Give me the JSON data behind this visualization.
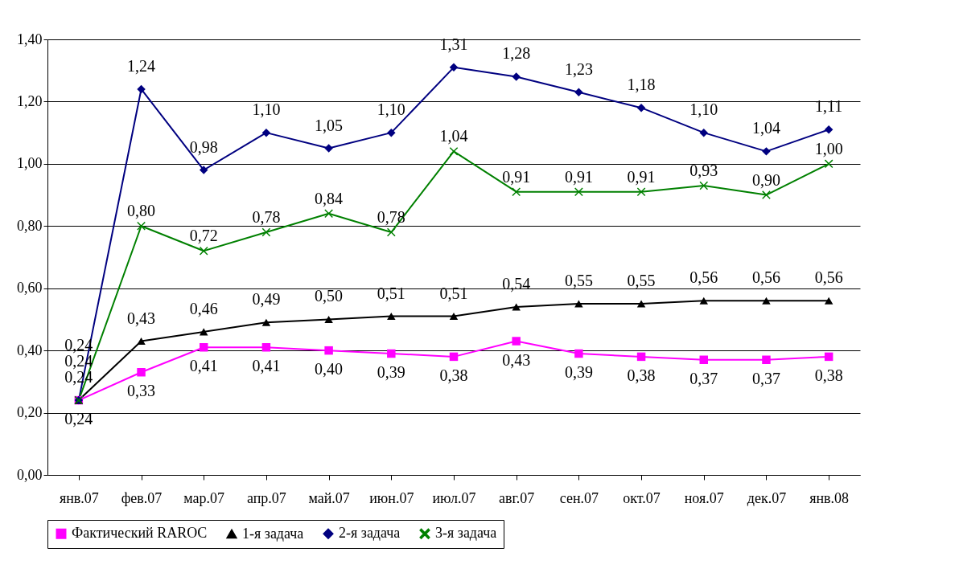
{
  "chart_data": {
    "type": "line",
    "categories": [
      "янв.07",
      "фев.07",
      "мар.07",
      "апр.07",
      "май.07",
      "июн.07",
      "июл.07",
      "авг.07",
      "сен.07",
      "окт.07",
      "ноя.07",
      "дек.07",
      "янв.08"
    ],
    "ylim": [
      0,
      1.4
    ],
    "yticks": [
      {
        "value": 0,
        "label": "0,00"
      },
      {
        "value": 0.2,
        "label": "0,20"
      },
      {
        "value": 0.4,
        "label": "0,40"
      },
      {
        "value": 0.6,
        "label": "0,60"
      },
      {
        "value": 0.8,
        "label": "0,80"
      },
      {
        "value": 1.0,
        "label": "1,00"
      },
      {
        "value": 1.2,
        "label": "1,20"
      },
      {
        "value": 1.4,
        "label": "1,40"
      }
    ],
    "grid": "y",
    "legend": "bottom",
    "series": [
      {
        "name": "Фактический RAROC",
        "color": "#ff00ff",
        "marker": "square",
        "values": [
          0.24,
          0.33,
          0.41,
          0.41,
          0.4,
          0.39,
          0.38,
          0.43,
          0.39,
          0.38,
          0.37,
          0.37,
          0.38
        ],
        "value_labels": [
          "0,24",
          "0,33",
          "0,41",
          "0,41",
          "0,40",
          "0,39",
          "0,38",
          "0,43",
          "0,39",
          "0,38",
          "0,37",
          "0,37",
          "0,38"
        ]
      },
      {
        "name": "1-я задача",
        "color": "#000000",
        "marker": "triangle",
        "values": [
          0.24,
          0.43,
          0.46,
          0.49,
          0.5,
          0.51,
          0.51,
          0.54,
          0.55,
          0.55,
          0.56,
          0.56,
          0.56
        ],
        "value_labels": [
          "0,24",
          "0,43",
          "0,46",
          "0,49",
          "0,50",
          "0,51",
          "0,51",
          "0,54",
          "0,55",
          "0,55",
          "0,56",
          "0,56",
          "0,56"
        ]
      },
      {
        "name": "2-я задача",
        "color": "#000080",
        "marker": "diamond",
        "values": [
          0.24,
          1.24,
          0.98,
          1.1,
          1.05,
          1.1,
          1.31,
          1.28,
          1.23,
          1.18,
          1.1,
          1.04,
          1.11
        ],
        "value_labels": [
          "0,24",
          "1,24",
          "0,98",
          "1,10",
          "1,05",
          "1,10",
          "1,31",
          "1,28",
          "1,23",
          "1,18",
          "1,10",
          "1,04",
          "1,11"
        ]
      },
      {
        "name": "3-я задача",
        "color": "#008000",
        "marker": "cross",
        "values": [
          0.24,
          0.8,
          0.72,
          0.78,
          0.84,
          0.78,
          1.04,
          0.91,
          0.91,
          0.91,
          0.93,
          0.9,
          1.0
        ],
        "value_labels": [
          "0,24",
          "0,80",
          "0,72",
          "0,78",
          "0,84",
          "0,78",
          "1,04",
          "0,91",
          "0,91",
          "0,91",
          "0,93",
          "0,90",
          "1,00"
        ]
      }
    ]
  }
}
